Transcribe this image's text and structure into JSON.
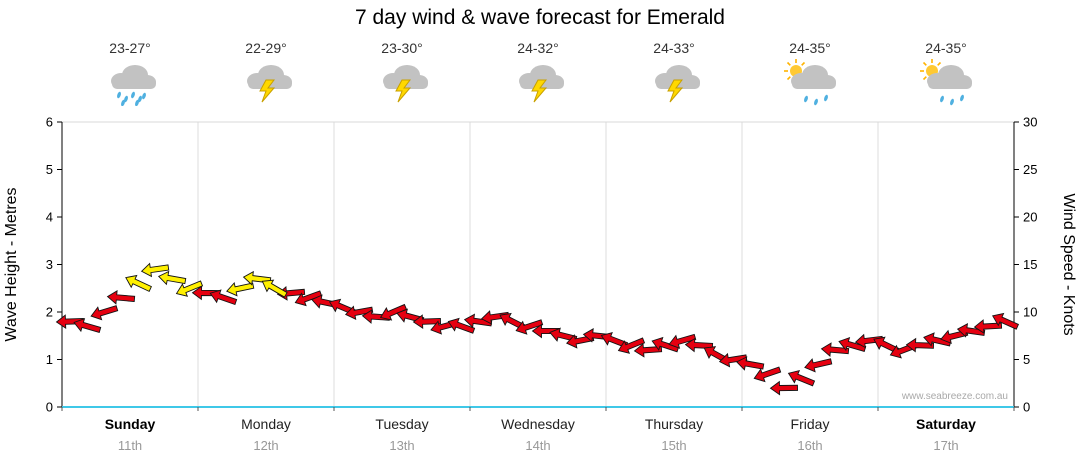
{
  "title": "7 day wind & wave forecast for Emerald",
  "watermark": "www.seabreeze.com.au",
  "days": [
    {
      "name": "Sunday",
      "date": "11th",
      "temp": "23-27°",
      "icon": "rain",
      "bold": true
    },
    {
      "name": "Monday",
      "date": "12th",
      "temp": "22-29°",
      "icon": "storm",
      "bold": false
    },
    {
      "name": "Tuesday",
      "date": "13th",
      "temp": "23-30°",
      "icon": "storm",
      "bold": false
    },
    {
      "name": "Wednesday",
      "date": "14th",
      "temp": "24-32°",
      "icon": "storm",
      "bold": false
    },
    {
      "name": "Thursday",
      "date": "15th",
      "temp": "24-33°",
      "icon": "storm",
      "bold": false
    },
    {
      "name": "Friday",
      "date": "16th",
      "temp": "24-35°",
      "icon": "sun-cloud-rain",
      "bold": false
    },
    {
      "name": "Saturday",
      "date": "17th",
      "temp": "24-35°",
      "icon": "sun-cloud-rain",
      "bold": true
    }
  ],
  "chart_data": {
    "type": "wind-arrows",
    "title": "7 day wind & wave forecast for Emerald",
    "categories": [
      "Sunday 11th",
      "Monday 12th",
      "Tuesday 13th",
      "Wednesday 14th",
      "Thursday 15th",
      "Friday 16th",
      "Saturday 17th"
    ],
    "points_per_day": 8,
    "left_axis": {
      "label": "Wave Height - Metres",
      "min": 0,
      "max": 6,
      "ticks": [
        0,
        1,
        2,
        3,
        4,
        5,
        6
      ]
    },
    "right_axis": {
      "label": "Wind Speed - Knots",
      "min": 0,
      "max": 30,
      "ticks": [
        0,
        5,
        10,
        15,
        20,
        25,
        30
      ]
    },
    "yellow_threshold_knots": 12.5,
    "wind_speed_knots": [
      9,
      8.5,
      10,
      11.5,
      13,
      14.5,
      13.5,
      12.5,
      12,
      11.5,
      12.5,
      13.5,
      12.5,
      12,
      11.5,
      11,
      10.5,
      10,
      9.5,
      10,
      9.5,
      9,
      8.5,
      8.5,
      9,
      9.5,
      9,
      8.5,
      8,
      7.5,
      7,
      7.5,
      7,
      6.5,
      6,
      6.5,
      7,
      6.5,
      5.5,
      5,
      4.5,
      3.5,
      2,
      3,
      4.5,
      6,
      6.5,
      7,
      6.5,
      6,
      6.5,
      7,
      7.5,
      8,
      8.5,
      9
    ],
    "directions_deg": [
      178,
      196,
      163,
      185,
      205,
      172,
      190,
      158,
      181,
      199,
      168,
      187,
      210,
      175,
      160,
      192,
      203,
      170,
      184,
      157,
      195,
      178,
      165,
      200,
      188,
      172,
      207,
      162,
      180,
      194,
      169,
      186,
      201,
      158,
      176,
      198,
      164,
      183,
      209,
      171,
      190,
      161,
      179,
      202,
      167,
      185,
      196,
      173,
      206,
      159,
      182,
      193,
      166,
      188,
      177,
      204
    ],
    "colors": {
      "low": "#E50010",
      "high": "#FFF000",
      "outline": "#141414",
      "bottom_axis": "#3FC8E8",
      "grid": "#DCDCDC",
      "axis": "#000000",
      "watermark": "#A9A9A9"
    }
  }
}
